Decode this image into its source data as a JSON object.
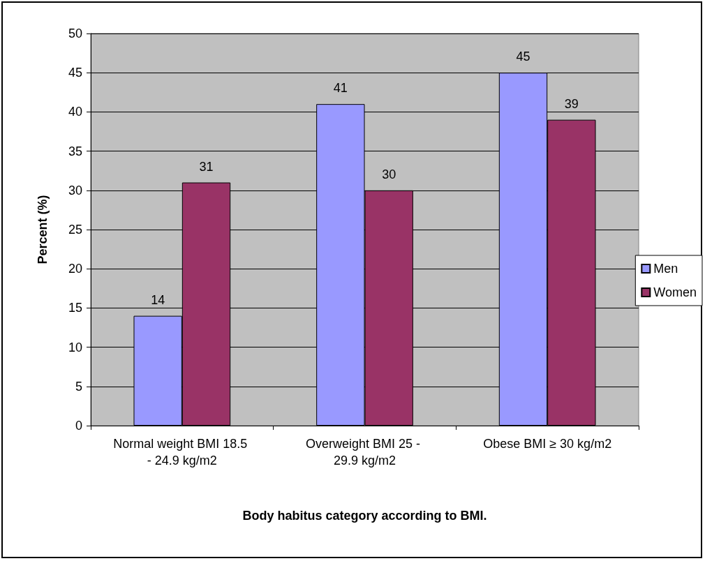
{
  "chart_data": {
    "type": "bar",
    "xlabel": "Body habitus category according to BMI.",
    "ylabel": "Percent (%)",
    "categories": [
      "Normal weight BMI 18.5 - 24.9 kg/m2",
      "Overweight BMI 25 - 29.9 kg/m2",
      "Obese BMI ≥ 30 kg/m2"
    ],
    "series": [
      {
        "name": "Men",
        "color": "#9999ff",
        "values": [
          14,
          41,
          45
        ]
      },
      {
        "name": "Women",
        "color": "#993366",
        "values": [
          31,
          30,
          39
        ]
      }
    ],
    "ylim": [
      0,
      50
    ],
    "yticks": [
      0,
      5,
      10,
      15,
      20,
      25,
      30,
      35,
      40,
      45,
      50
    ],
    "grid": "y",
    "legend": "right",
    "data_labels": true
  }
}
